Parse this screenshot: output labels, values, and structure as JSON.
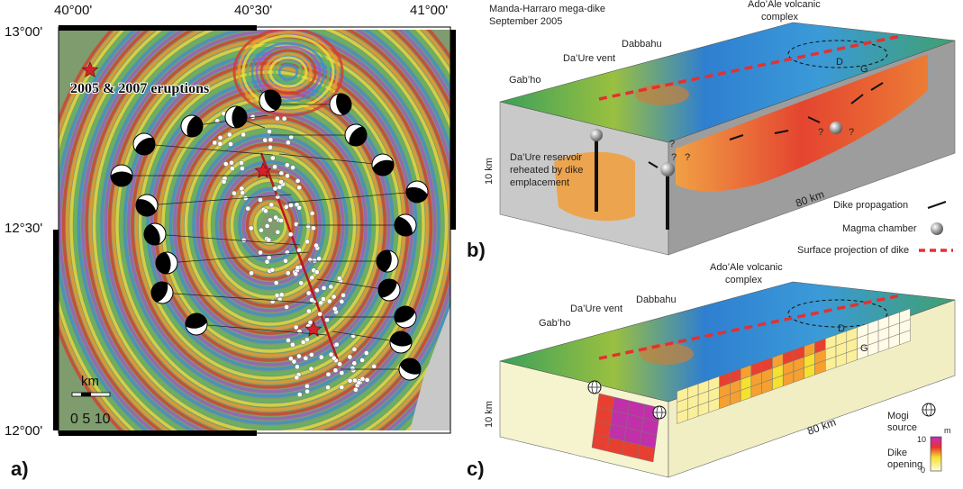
{
  "panel_a": {
    "label": "a)",
    "lon_labels": [
      "40°00'",
      "40°30'",
      "41°00'"
    ],
    "lat_labels": [
      "13°00'",
      "12°30'",
      "12°00'"
    ],
    "annotation": "2005 & 2007 eruptions",
    "scale_unit": "km",
    "scale_labels": "0 5 10"
  },
  "panel_b": {
    "label": "b)",
    "title_lines": [
      "Manda-Harraro mega-dike",
      "September 2005"
    ],
    "complex_lines": [
      "Ado’Ale volcanic",
      "complex"
    ],
    "dabbahu": "Dabbahu",
    "vent": "Da’Ure vent",
    "gabho": "Gab’ho",
    "d": "D",
    "g": "G",
    "depth": "10 km",
    "length": "80 km",
    "reservoir_lines": [
      "Da’Ure reservoir",
      "reheated by dike",
      "emplacement"
    ],
    "question": "?",
    "legend": [
      "Dike propagation",
      "Magma chamber",
      "Surface projection of dike"
    ]
  },
  "panel_c": {
    "label": "c)",
    "complex_lines": [
      "Ado’Ale volcanic",
      "complex"
    ],
    "dabbahu": "Dabbahu",
    "vent": "Da’Ure vent",
    "gabho": "Gab’ho",
    "d": "D",
    "g": "G",
    "depth": "10 km",
    "length": "80 km",
    "mogi_lines": [
      "Mogi",
      "source"
    ],
    "opening_lines": [
      "Dike",
      "opening"
    ],
    "colorbar_unit": "m",
    "colorbar_max": 10,
    "colorbar_min": 0
  }
}
